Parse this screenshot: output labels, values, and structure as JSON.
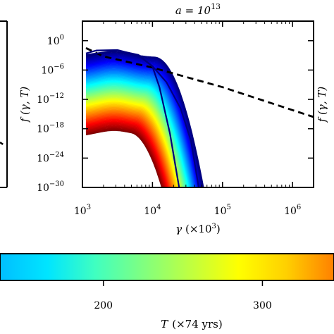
{
  "chart_data": {
    "type": "line",
    "title": {
      "base": "a = 10",
      "exp": "13"
    },
    "xlabel": {
      "main": "γ",
      "unit": " (×10",
      "unit_exp": "3",
      "close": ")"
    },
    "ylabel": "f (γ, T)",
    "left_panel_ylabel": "f (γ, T)",
    "right_panel_ylabel": "f (γ, T)",
    "x_scale": "log",
    "y_scale": "log",
    "xlim_log10": [
      3,
      6.3
    ],
    "ylim_log10": [
      -30,
      4
    ],
    "x_ticks": [
      {
        "base": "10",
        "exp": "3",
        "log": 3
      },
      {
        "base": "10",
        "exp": "4",
        "log": 4
      },
      {
        "base": "10",
        "exp": "5",
        "log": 5
      },
      {
        "base": "10",
        "exp": "6",
        "log": 6
      }
    ],
    "y_ticks": [
      {
        "base": "10",
        "exp": "0",
        "log": 0
      },
      {
        "base": "10",
        "exp": "−6",
        "log": -6
      },
      {
        "base": "10",
        "exp": "−12",
        "log": -12
      },
      {
        "base": "10",
        "exp": "−18",
        "log": -18
      },
      {
        "base": "10",
        "exp": "−24",
        "log": -24
      },
      {
        "base": "10",
        "exp": "−30",
        "log": -30
      }
    ],
    "family": {
      "count": 60,
      "color_min": "#ff0000",
      "color_max": "#0000ff",
      "low_gamma_level_log10": [
        -19.5,
        -3.5
      ],
      "cutoff_log10_gamma": [
        4.05,
        4.38
      ]
    },
    "curves": [
      {
        "style": "dashed",
        "color": "#000000",
        "points_log": [
          [
            3.05,
            -1.5
          ],
          [
            3.3,
            -3.2
          ],
          [
            4.0,
            -5.5
          ],
          [
            5.0,
            -9.5
          ],
          [
            6.0,
            -14.2
          ],
          [
            6.3,
            -15.6
          ]
        ]
      },
      {
        "style": "solid",
        "color": "#000080",
        "points_log": [
          [
            3.05,
            -2.6
          ],
          [
            3.2,
            -2.0
          ],
          [
            3.5,
            -1.9
          ],
          [
            3.8,
            -3.0
          ],
          [
            4.0,
            -5.2
          ],
          [
            4.2,
            -8.5
          ],
          [
            4.4,
            -13.8
          ],
          [
            4.55,
            -20.5
          ],
          [
            4.66,
            -30
          ]
        ]
      },
      {
        "style": "solid",
        "color": "#000080",
        "points_log": [
          [
            3.05,
            -2.9
          ],
          [
            3.5,
            -2.0
          ],
          [
            3.8,
            -2.9
          ],
          [
            4.0,
            -5.3
          ],
          [
            4.1,
            -9.5
          ],
          [
            4.25,
            -19
          ],
          [
            4.38,
            -30
          ]
        ]
      }
    ],
    "colorbar": {
      "label": "T",
      "label_unit": "(×74 yrs)",
      "range": [
        135,
        345
      ],
      "ticks": [
        {
          "label": "200",
          "value": 200
        },
        {
          "label": "300",
          "value": 300
        }
      ],
      "colormap": [
        "#00bfff",
        "#00e5ff",
        "#40ffc0",
        "#80ff80",
        "#c0ff40",
        "#ffff00",
        "#ffd000",
        "#ff8000"
      ]
    }
  }
}
